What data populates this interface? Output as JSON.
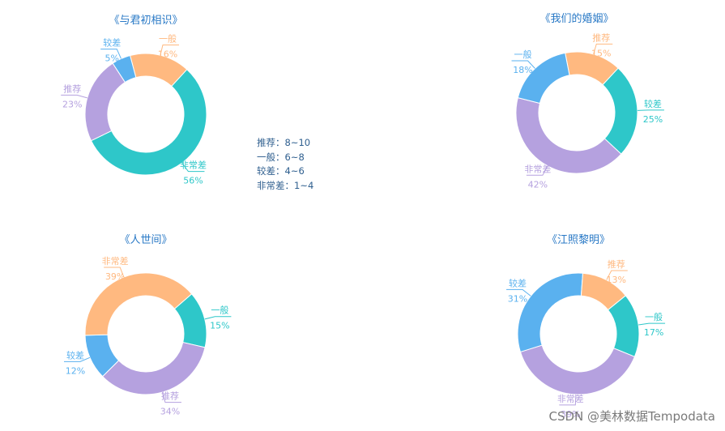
{
  "legend_note": [
    "推荐：8~10",
    "一般：6~8",
    "较差：4~6",
    "非常差：1~4"
  ],
  "watermark": "CSDN @美林数据Tempodata",
  "colors": {
    "推荐": "#b5a1df",
    "一般": "#2ec7c9",
    "较差": "#5ab1ef",
    "非常差": "#ffb980",
    "title": "#2979c6"
  },
  "chart_data": [
    {
      "type": "pie",
      "title": "《与君初相识》",
      "series": [
        {
          "name": "一般",
          "percent": "16%",
          "value": 16,
          "color": "#ffb980"
        },
        {
          "name": "非常差",
          "percent": "56%",
          "value": 56,
          "color": "#2ec7c9"
        },
        {
          "name": "推荐",
          "percent": "23%",
          "value": 23,
          "color": "#b5a1df"
        },
        {
          "name": "较差",
          "percent": "5%",
          "value": 5,
          "color": "#5ab1ef"
        }
      ]
    },
    {
      "type": "pie",
      "title": "《我们的婚姻》",
      "series": [
        {
          "name": "推荐",
          "percent": "15%",
          "value": 15,
          "color": "#ffb980"
        },
        {
          "name": "较差",
          "percent": "25%",
          "value": 25,
          "color": "#2ec7c9"
        },
        {
          "name": "非常差",
          "percent": "42%",
          "value": 42,
          "color": "#b5a1df"
        },
        {
          "name": "一般",
          "percent": "18%",
          "value": 18,
          "color": "#5ab1ef"
        }
      ]
    },
    {
      "type": "pie",
      "title": "《人世间》",
      "series": [
        {
          "name": "一般",
          "percent": "15%",
          "value": 15,
          "color": "#2ec7c9"
        },
        {
          "name": "推荐",
          "percent": "34%",
          "value": 34,
          "color": "#b5a1df"
        },
        {
          "name": "较差",
          "percent": "12%",
          "value": 12,
          "color": "#5ab1ef"
        },
        {
          "name": "非常差",
          "percent": "39%",
          "value": 39,
          "color": "#ffb980"
        }
      ]
    },
    {
      "type": "pie",
      "title": "《江照黎明》",
      "series": [
        {
          "name": "一般",
          "percent": "17%",
          "value": 17,
          "color": "#2ec7c9"
        },
        {
          "name": "非常差",
          "percent": "39%",
          "value": 39,
          "color": "#b5a1df"
        },
        {
          "name": "较差",
          "percent": "31%",
          "value": 31,
          "color": "#5ab1ef"
        },
        {
          "name": "推荐",
          "percent": "13%",
          "value": 13,
          "color": "#ffb980"
        }
      ]
    }
  ]
}
